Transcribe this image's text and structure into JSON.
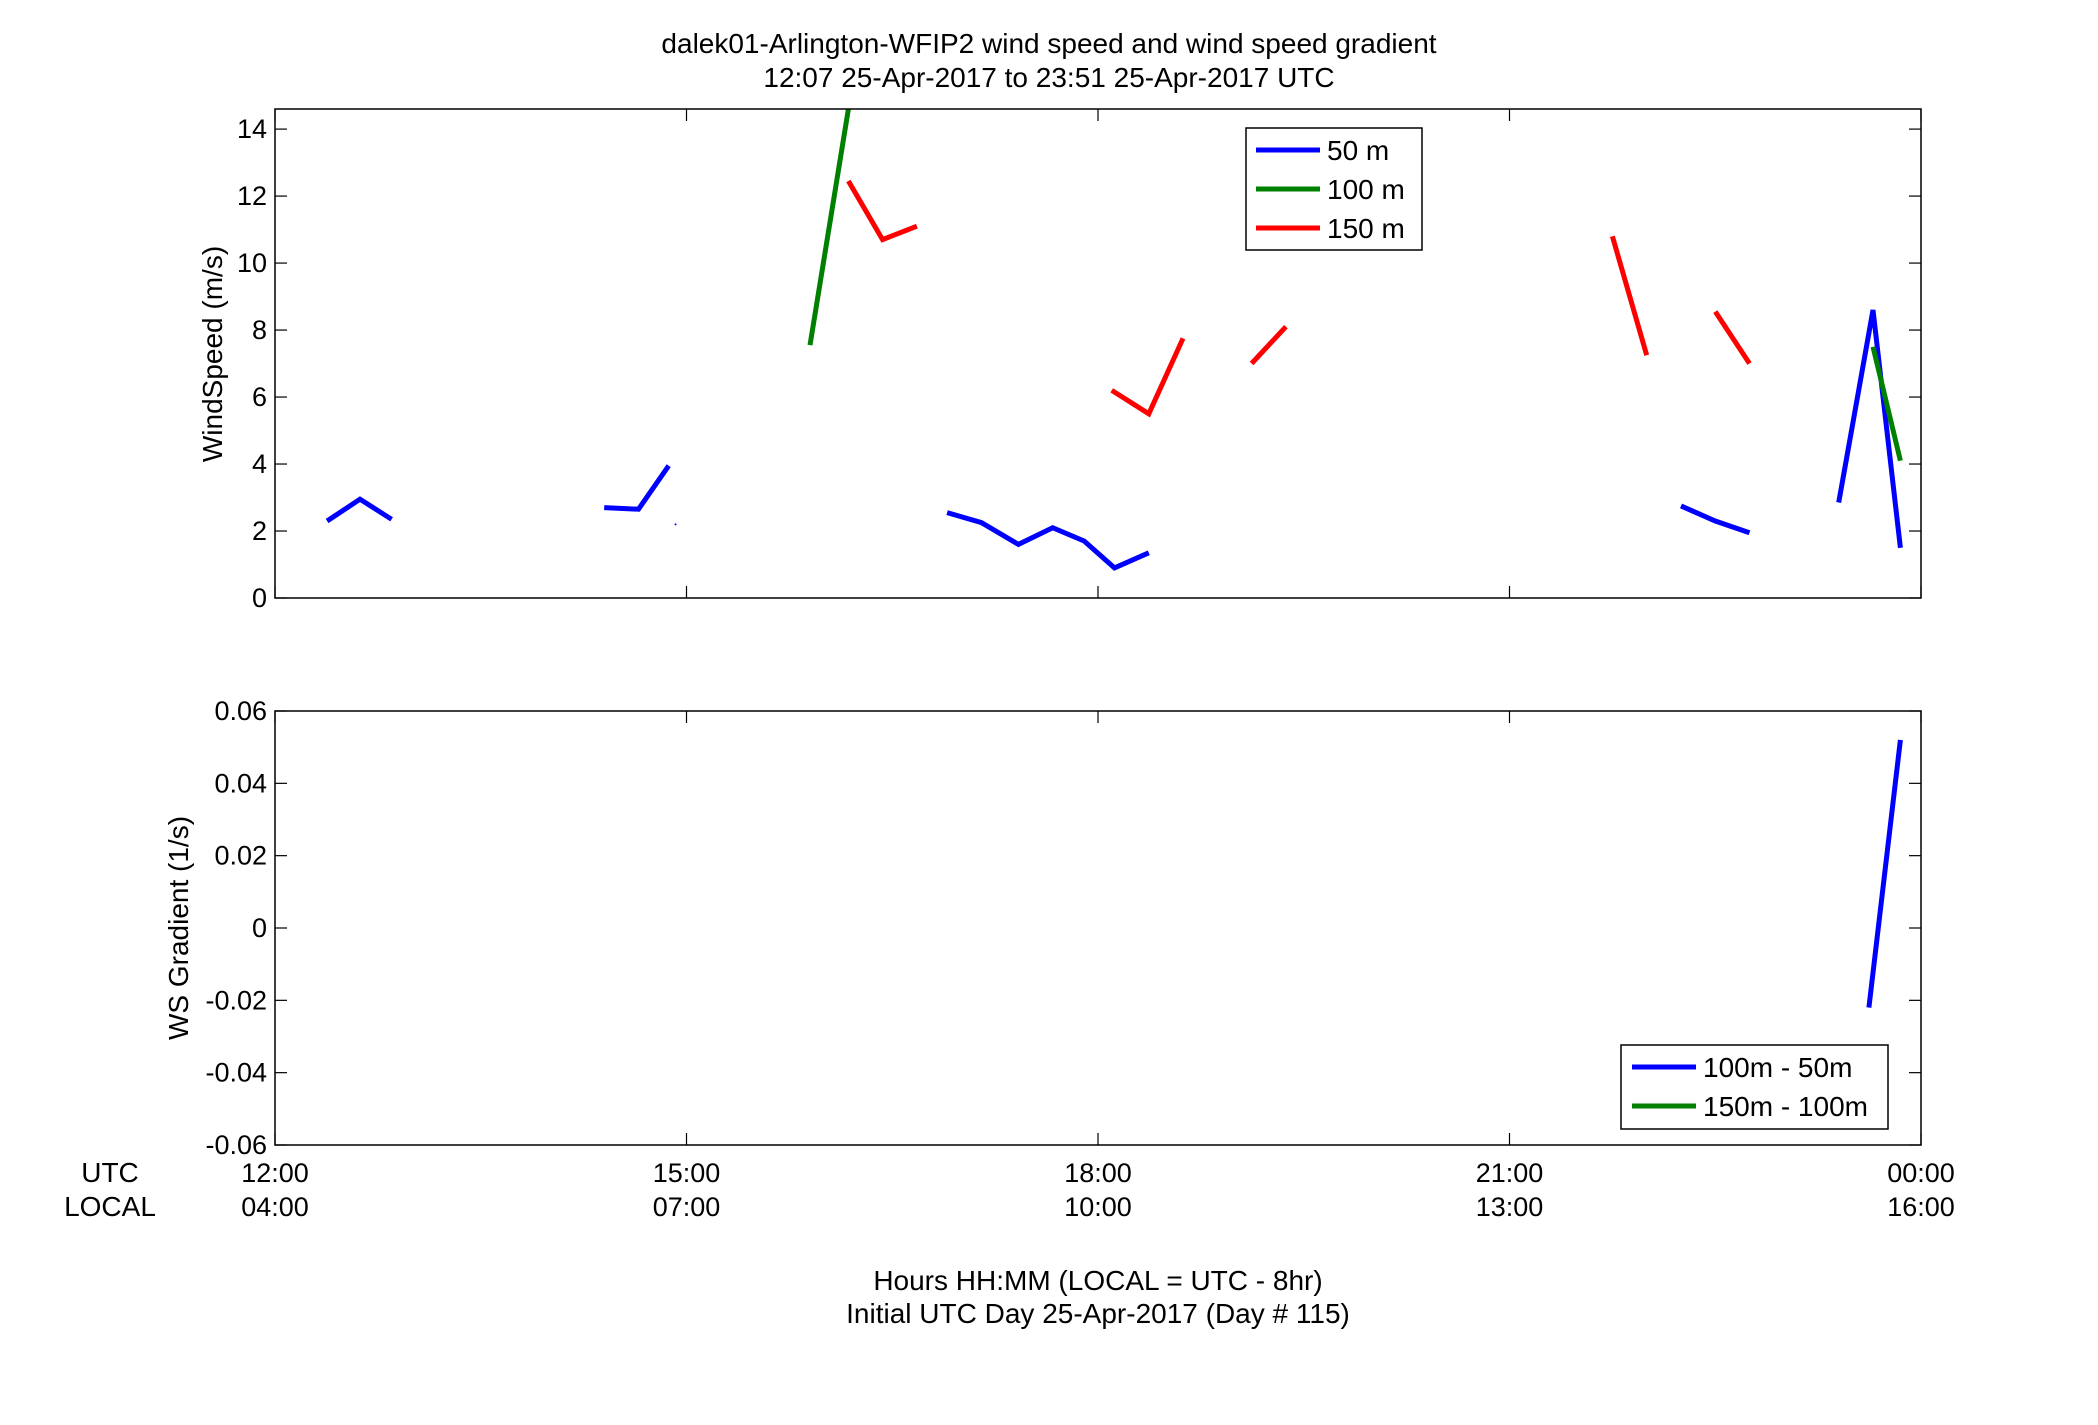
{
  "title": {
    "line1": "dalek01-Arlington-WFIP2  wind speed and wind speed gradient",
    "line2": "12:07 25-Apr-2017 to 23:51 25-Apr-2017  UTC"
  },
  "row_labels": {
    "utc": "UTC",
    "local": "LOCAL"
  },
  "xaxis": {
    "utc_ticks": [
      "12:00",
      "15:00",
      "18:00",
      "21:00",
      "00:00"
    ],
    "local_ticks": [
      "04:00",
      "07:00",
      "10:00",
      "13:00",
      "16:00"
    ],
    "xlabel_line1": "Hours HH:MM  (LOCAL = UTC - 8hr)",
    "xlabel_line2": "Initial UTC Day 25-Apr-2017 (Day # 115)"
  },
  "colors": {
    "blue": "#0000ff",
    "green": "#008000",
    "red": "#ff0000"
  },
  "chart_data": [
    {
      "type": "line",
      "ylabel": "WindSpeed (m/s)",
      "xlim": [
        12,
        24
      ],
      "ylim": [
        0,
        14.6
      ],
      "yticks": [
        "0",
        "2",
        "4",
        "6",
        "8",
        "10",
        "12",
        "14"
      ],
      "legend_position": "top-right",
      "series": [
        {
          "name": "50 m",
          "color": "#0000ff",
          "segments": [
            [
              [
                12.38,
                2.3
              ],
              [
                12.62,
                2.95
              ],
              [
                12.85,
                2.35
              ]
            ],
            [
              [
                14.4,
                2.7
              ],
              [
                14.65,
                2.65
              ],
              [
                14.87,
                3.95
              ]
            ],
            [
              [
                14.92,
                2.2
              ]
            ],
            [
              [
                16.9,
                2.55
              ],
              [
                17.15,
                2.25
              ],
              [
                17.42,
                1.6
              ],
              [
                17.67,
                2.1
              ],
              [
                17.9,
                1.7
              ],
              [
                18.12,
                0.9
              ],
              [
                18.37,
                1.35
              ]
            ],
            [
              [
                22.25,
                2.75
              ],
              [
                22.5,
                2.3
              ],
              [
                22.75,
                1.95
              ]
            ],
            [
              [
                23.4,
                2.85
              ],
              [
                23.65,
                8.6
              ],
              [
                23.85,
                1.5
              ]
            ]
          ]
        },
        {
          "name": "100 m",
          "color": "#008000",
          "segments": [
            [
              [
                15.9,
                7.55
              ],
              [
                16.18,
                14.6
              ]
            ],
            [
              [
                23.65,
                7.5
              ],
              [
                23.85,
                4.1
              ]
            ]
          ]
        },
        {
          "name": "150 m",
          "color": "#ff0000",
          "segments": [
            [
              [
                16.18,
                12.45
              ],
              [
                16.43,
                10.7
              ],
              [
                16.68,
                11.1
              ]
            ],
            [
              [
                18.1,
                6.2
              ],
              [
                18.37,
                5.5
              ],
              [
                18.62,
                7.75
              ]
            ],
            [
              [
                19.12,
                7.0
              ],
              [
                19.37,
                8.1
              ]
            ],
            [
              [
                21.75,
                10.8
              ],
              [
                22.0,
                7.25
              ]
            ],
            [
              [
                22.5,
                8.55
              ],
              [
                22.75,
                7.0
              ]
            ]
          ]
        }
      ]
    },
    {
      "type": "line",
      "ylabel": "WS Gradient (1/s)",
      "xlim": [
        12,
        24
      ],
      "ylim": [
        -0.06,
        0.06
      ],
      "yticks": [
        "-0.06",
        "-0.04",
        "-0.02",
        "0",
        "0.02",
        "0.04",
        "0.06"
      ],
      "legend_position": "bottom-right",
      "series": [
        {
          "name": "100m - 50m",
          "color": "#0000ff",
          "segments": [
            [
              [
                23.62,
                -0.022
              ],
              [
                23.85,
                0.052
              ]
            ]
          ]
        },
        {
          "name": "150m - 100m",
          "color": "#008000",
          "segments": []
        }
      ]
    }
  ]
}
